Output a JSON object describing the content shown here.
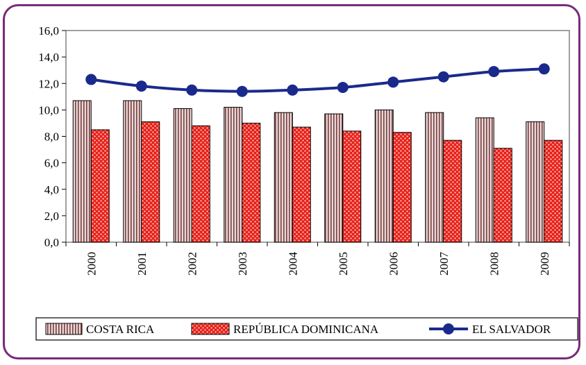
{
  "chart_data": {
    "type": "bar",
    "categories": [
      "2000",
      "2001",
      "2002",
      "2003",
      "2004",
      "2005",
      "2006",
      "2007",
      "2008",
      "2009"
    ],
    "series": [
      {
        "name": "COSTA RICA",
        "type": "bar",
        "values": [
          10.7,
          10.7,
          10.1,
          10.2,
          9.8,
          9.7,
          10.0,
          9.8,
          9.4,
          9.1
        ]
      },
      {
        "name": "REPÚBLICA DOMINICANA",
        "type": "bar",
        "values": [
          8.5,
          9.1,
          8.8,
          9.0,
          8.7,
          8.4,
          8.3,
          7.7,
          7.1,
          7.7
        ]
      },
      {
        "name": "EL SALVADOR",
        "type": "line",
        "values": [
          12.3,
          11.8,
          11.5,
          11.4,
          11.5,
          11.7,
          12.1,
          12.5,
          12.9,
          13.1
        ]
      }
    ],
    "ylim": [
      0,
      16
    ],
    "yticks": [
      "0,0",
      "2,0",
      "4,0",
      "6,0",
      "8,0",
      "10,0",
      "12,0",
      "14,0",
      "16,0"
    ],
    "grid": false,
    "legend_position": "bottom",
    "colors": {
      "costa_rica_fill": "#e8d9d9",
      "costa_rica_stripe": "#7a3e3e",
      "rep_dom_fill": "#e8211a",
      "rep_dom_dot": "#fbd0c8",
      "el_salvador_line": "#1a2a8c",
      "frame": "#7a2a7a"
    }
  }
}
